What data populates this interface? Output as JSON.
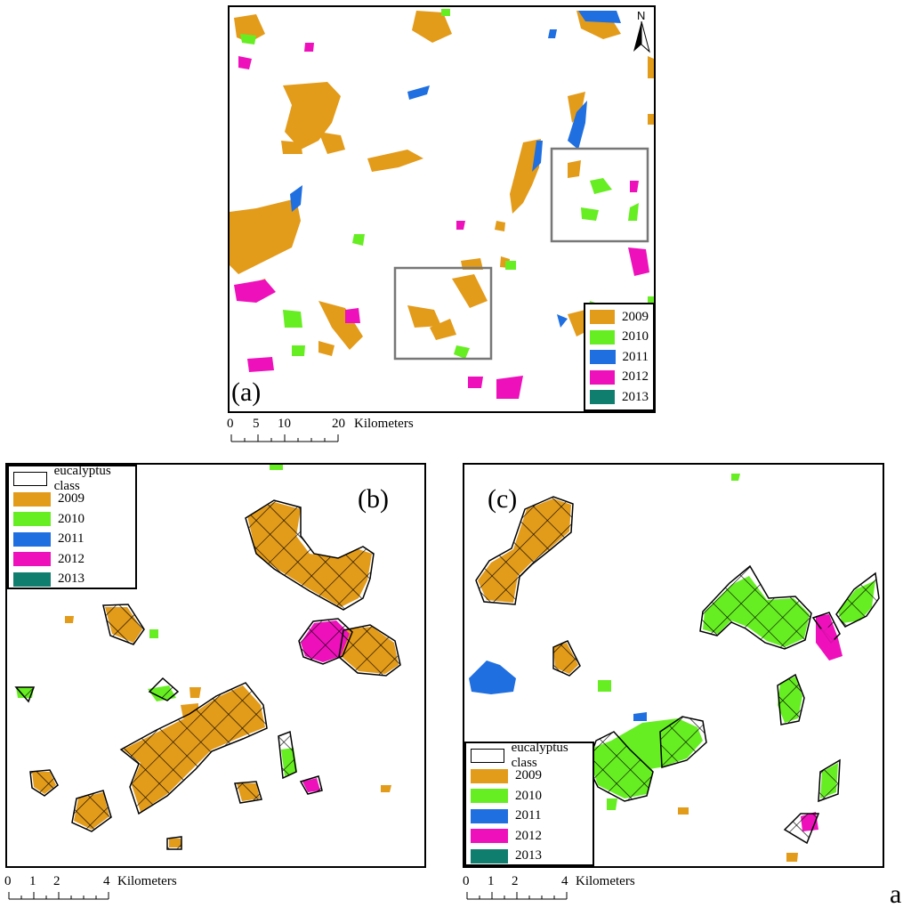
{
  "colors": {
    "2009": "#e39b1a",
    "2010": "#66ee22",
    "2011": "#1f6fe0",
    "2012": "#ee11bb",
    "2013": "#0f7e6e"
  },
  "panel_a": {
    "label": "(a)",
    "north_label": "N",
    "legend": [
      {
        "year": "2009",
        "color": "#e39b1a"
      },
      {
        "year": "2010",
        "color": "#66ee22"
      },
      {
        "year": "2011",
        "color": "#1f6fe0"
      },
      {
        "year": "2012",
        "color": "#ee11bb"
      },
      {
        "year": "2013",
        "color": "#0f7e6e"
      }
    ],
    "scale": {
      "ticks": [
        "0",
        "5",
        "10",
        "20"
      ],
      "unit": "Kilometers"
    }
  },
  "panel_b": {
    "label": "(b)",
    "legend_title": "eucalyptus class",
    "legend": [
      {
        "year": "2009",
        "color": "#e39b1a"
      },
      {
        "year": "2010",
        "color": "#66ee22"
      },
      {
        "year": "2011",
        "color": "#1f6fe0"
      },
      {
        "year": "2012",
        "color": "#ee11bb"
      },
      {
        "year": "2013",
        "color": "#0f7e6e"
      }
    ],
    "scale": {
      "ticks": [
        "0",
        "1",
        "2",
        "4"
      ],
      "unit": "Kilometers"
    }
  },
  "panel_c": {
    "label": "(c)",
    "legend_title": "eucalyptus class",
    "legend": [
      {
        "year": "2009",
        "color": "#e39b1a"
      },
      {
        "year": "2010",
        "color": "#66ee22"
      },
      {
        "year": "2011",
        "color": "#1f6fe0"
      },
      {
        "year": "2012",
        "color": "#ee11bb"
      },
      {
        "year": "2013",
        "color": "#0f7e6e"
      }
    ],
    "scale": {
      "ticks": [
        "0",
        "1",
        "2",
        "4"
      ],
      "unit": "Kilometers"
    }
  },
  "corner_letter": "a"
}
